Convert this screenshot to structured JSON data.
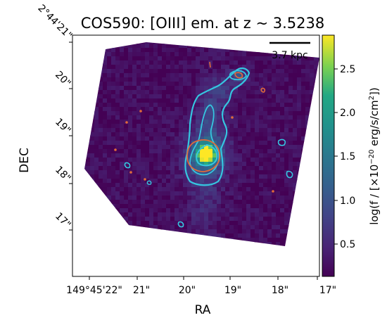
{
  "chart_data": {
    "type": "heatmap",
    "title": "COS590: [OIII] em. at z ~ 3.5238",
    "xlabel": "RA",
    "ylabel": "DEC",
    "x_tick_labels": [
      "149°45'22\"",
      "21\"",
      "20\"",
      "19\"",
      "18\"",
      "17\""
    ],
    "y_tick_labels": [
      "2°44'21\"",
      "20\"",
      "19\"",
      "18\"",
      "17\""
    ],
    "scalebar_label": "3.7 kpc",
    "colorbar": {
      "label_prefix": "log(f / [×10",
      "label_exponent": "−20",
      "label_suffix": " erg/s/cm",
      "label_power": "2",
      "label_end": "])",
      "ticks": [
        "0.5",
        "1.0",
        "1.5",
        "2.0",
        "2.5"
      ],
      "range": [
        0.1,
        2.85
      ],
      "colormap": "viridis"
    },
    "contour_colors": {
      "outer": "#35c6e0",
      "inner": "#e06a3a",
      "core": "#fde725"
    },
    "peak_value": 2.8,
    "background_level": 0.2,
    "grid": false
  }
}
